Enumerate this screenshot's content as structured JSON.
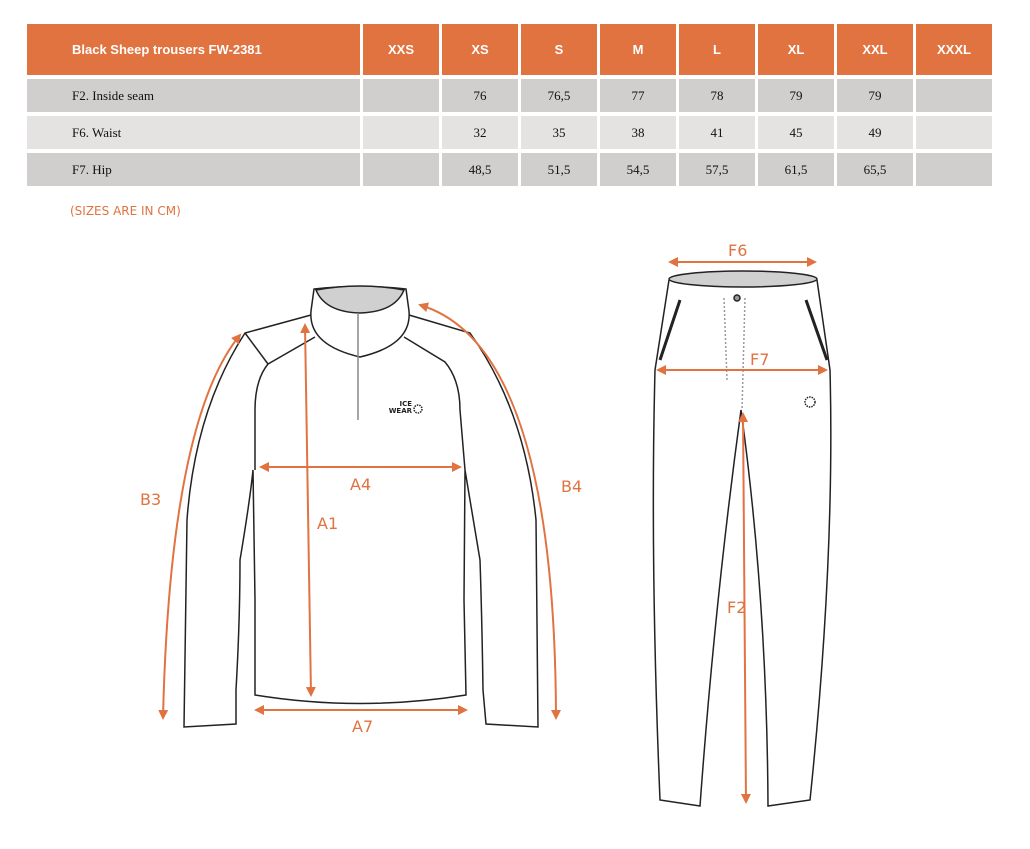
{
  "table": {
    "title": "Black Sheep trousers FW-2381",
    "sizes": [
      "XXS",
      "XS",
      "S",
      "M",
      "L",
      "XL",
      "XXL",
      "XXXL"
    ],
    "rows": [
      {
        "label": "F2. Inside seam",
        "values": [
          "",
          "76",
          "76,5",
          "77",
          "78",
          "79",
          "79",
          ""
        ]
      },
      {
        "label": "F6. Waist",
        "values": [
          "",
          "32",
          "35",
          "38",
          "41",
          "45",
          "49",
          ""
        ]
      },
      {
        "label": "F7. Hip",
        "values": [
          "",
          "48,5",
          "51,5",
          "54,5",
          "57,5",
          "61,5",
          "65,5",
          ""
        ]
      }
    ]
  },
  "note": "(SIZES ARE IN CM)",
  "jacket": {
    "labels": {
      "b3": "B3",
      "b4": "B4",
      "a1": "A1",
      "a4": "A4",
      "a7": "A7"
    },
    "logo": "ICE WEAR"
  },
  "trousers": {
    "labels": {
      "f6": "F6",
      "f7": "F7",
      "f2": "F2"
    }
  },
  "colors": {
    "accent": "#e07340",
    "row_dark": "#d0cfcd",
    "row_light": "#e4e3e1"
  }
}
